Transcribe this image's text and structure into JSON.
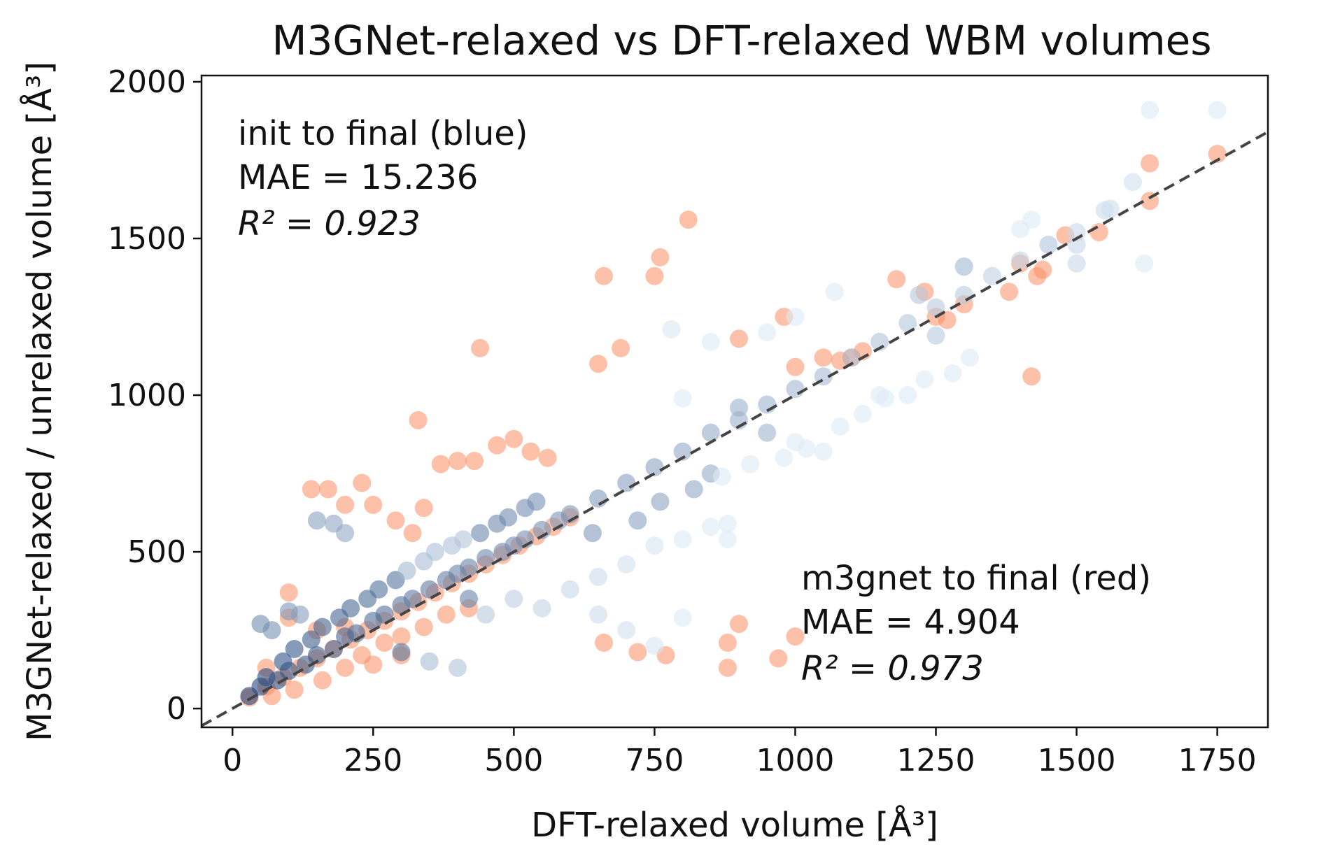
{
  "chart_data": {
    "type": "scatter",
    "title": "M3GNet-relaxed vs DFT-relaxed WBM volumes",
    "xlabel": "DFT-relaxed volume [Å³]",
    "ylabel": "M3GNet-relaxed / unrelaxed volume [Å³]",
    "xlim": [
      -55,
      1840
    ],
    "ylim": [
      -60,
      2020
    ],
    "xticks": [
      0,
      250,
      500,
      750,
      1000,
      1250,
      1500,
      1750
    ],
    "yticks": [
      0,
      500,
      1000,
      1500,
      2000
    ],
    "grid": false,
    "reference_line": {
      "style": "dashed",
      "color": "#444444",
      "x": [
        -55,
        1840
      ],
      "y": [
        -55,
        1840
      ]
    },
    "series": [
      {
        "color_scale": [
          "#08306b",
          "#deebf7"
        ],
        "points": [
          [
            30,
            40
          ],
          [
            50,
            70
          ],
          [
            80,
            90
          ],
          [
            100,
            120
          ],
          [
            130,
            140
          ],
          [
            150,
            170
          ],
          [
            180,
            190
          ],
          [
            200,
            230
          ],
          [
            220,
            240
          ],
          [
            250,
            280
          ],
          [
            270,
            300
          ],
          [
            300,
            330
          ],
          [
            320,
            350
          ],
          [
            350,
            380
          ],
          [
            380,
            410
          ],
          [
            400,
            430
          ],
          [
            420,
            450
          ],
          [
            450,
            480
          ],
          [
            480,
            500
          ],
          [
            500,
            520
          ],
          [
            520,
            540
          ],
          [
            550,
            570
          ],
          [
            580,
            600
          ],
          [
            600,
            620
          ],
          [
            650,
            670
          ],
          [
            700,
            720
          ],
          [
            750,
            770
          ],
          [
            800,
            820
          ],
          [
            850,
            880
          ],
          [
            900,
            920
          ],
          [
            950,
            970
          ],
          [
            1000,
            1020
          ],
          [
            1050,
            1060
          ],
          [
            1100,
            1120
          ],
          [
            1150,
            1170
          ],
          [
            1200,
            1230
          ],
          [
            1250,
            1280
          ],
          [
            1300,
            1320
          ],
          [
            1350,
            1380
          ],
          [
            1400,
            1430
          ],
          [
            1450,
            1480
          ],
          [
            1500,
            1520
          ],
          [
            1550,
            1590
          ],
          [
            1600,
            1680
          ],
          [
            1620,
            1420
          ],
          [
            1500,
            1420
          ],
          [
            1630,
            1910
          ],
          [
            1750,
            1910
          ],
          [
            1420,
            1560
          ],
          [
            1300,
            1410
          ],
          [
            1250,
            1190
          ],
          [
            1200,
            1000
          ],
          [
            1150,
            1000
          ],
          [
            1050,
            820
          ],
          [
            1000,
            850
          ],
          [
            950,
            880
          ],
          [
            900,
            960
          ],
          [
            850,
            750
          ],
          [
            800,
            990
          ],
          [
            780,
            1210
          ],
          [
            850,
            1170
          ],
          [
            950,
            1200
          ],
          [
            1000,
            1250
          ],
          [
            1070,
            1330
          ],
          [
            1220,
            1320
          ],
          [
            1300,
            1410
          ],
          [
            1500,
            1480
          ],
          [
            1450,
            1480
          ],
          [
            1400,
            1530
          ],
          [
            1560,
            1595
          ],
          [
            50,
            270
          ],
          [
            70,
            250
          ],
          [
            100,
            310
          ],
          [
            120,
            300
          ],
          [
            150,
            600
          ],
          [
            180,
            590
          ],
          [
            200,
            560
          ],
          [
            300,
            180
          ],
          [
            350,
            150
          ],
          [
            400,
            130
          ],
          [
            420,
            350
          ],
          [
            450,
            300
          ],
          [
            500,
            350
          ],
          [
            550,
            320
          ],
          [
            600,
            380
          ],
          [
            650,
            420
          ],
          [
            700,
            460
          ],
          [
            750,
            520
          ],
          [
            800,
            540
          ],
          [
            850,
            580
          ],
          [
            650,
            300
          ],
          [
            700,
            250
          ],
          [
            750,
            200
          ],
          [
            800,
            290
          ],
          [
            640,
            560
          ],
          [
            720,
            600
          ],
          [
            760,
            660
          ],
          [
            820,
            700
          ],
          [
            870,
            740
          ],
          [
            920,
            780
          ],
          [
            980,
            800
          ],
          [
            1020,
            830
          ],
          [
            1080,
            900
          ],
          [
            1120,
            940
          ],
          [
            1160,
            990
          ],
          [
            1230,
            1050
          ],
          [
            1280,
            1070
          ],
          [
            1310,
            1120
          ],
          [
            880,
            590
          ],
          [
            880,
            540
          ],
          [
            60,
            100
          ],
          [
            90,
            150
          ],
          [
            110,
            190
          ],
          [
            140,
            220
          ],
          [
            160,
            260
          ],
          [
            190,
            290
          ],
          [
            210,
            320
          ],
          [
            240,
            350
          ],
          [
            260,
            380
          ],
          [
            290,
            410
          ],
          [
            310,
            440
          ],
          [
            340,
            470
          ],
          [
            360,
            500
          ],
          [
            390,
            520
          ],
          [
            410,
            540
          ],
          [
            440,
            560
          ],
          [
            470,
            590
          ],
          [
            490,
            610
          ],
          [
            520,
            640
          ],
          [
            540,
            660
          ]
        ]
      },
      {
        "color": "#fc8d62",
        "points": [
          [
            30,
            35
          ],
          [
            60,
            70
          ],
          [
            90,
            100
          ],
          [
            120,
            130
          ],
          [
            150,
            160
          ],
          [
            180,
            190
          ],
          [
            210,
            220
          ],
          [
            240,
            250
          ],
          [
            270,
            280
          ],
          [
            300,
            310
          ],
          [
            330,
            340
          ],
          [
            360,
            370
          ],
          [
            390,
            400
          ],
          [
            420,
            430
          ],
          [
            450,
            460
          ],
          [
            480,
            490
          ],
          [
            510,
            520
          ],
          [
            540,
            550
          ],
          [
            570,
            580
          ],
          [
            600,
            610
          ],
          [
            140,
            700
          ],
          [
            170,
            700
          ],
          [
            200,
            650
          ],
          [
            230,
            720
          ],
          [
            250,
            650
          ],
          [
            290,
            600
          ],
          [
            320,
            560
          ],
          [
            340,
            640
          ],
          [
            370,
            780
          ],
          [
            400,
            790
          ],
          [
            430,
            790
          ],
          [
            470,
            840
          ],
          [
            500,
            860
          ],
          [
            530,
            820
          ],
          [
            560,
            800
          ],
          [
            330,
            920
          ],
          [
            440,
            1150
          ],
          [
            650,
            1100
          ],
          [
            690,
            1150
          ],
          [
            750,
            1380
          ],
          [
            760,
            1440
          ],
          [
            810,
            1560
          ],
          [
            660,
            1380
          ],
          [
            900,
            1180
          ],
          [
            980,
            1250
          ],
          [
            1000,
            1090
          ],
          [
            1050,
            1120
          ],
          [
            1080,
            1110
          ],
          [
            1100,
            1120
          ],
          [
            1120,
            1140
          ],
          [
            1180,
            1370
          ],
          [
            1230,
            1330
          ],
          [
            1250,
            1250
          ],
          [
            1270,
            1240
          ],
          [
            1300,
            1290
          ],
          [
            1380,
            1330
          ],
          [
            1400,
            1420
          ],
          [
            1430,
            1380
          ],
          [
            1440,
            1400
          ],
          [
            1480,
            1510
          ],
          [
            1540,
            1520
          ],
          [
            1630,
            1740
          ],
          [
            1630,
            1620
          ],
          [
            1750,
            1770
          ],
          [
            1420,
            1060
          ],
          [
            900,
            270
          ],
          [
            880,
            210
          ],
          [
            880,
            130
          ],
          [
            970,
            160
          ],
          [
            1000,
            230
          ],
          [
            660,
            210
          ],
          [
            770,
            170
          ],
          [
            720,
            180
          ],
          [
            300,
            170
          ],
          [
            250,
            140
          ],
          [
            200,
            260
          ],
          [
            150,
            250
          ],
          [
            100,
            370
          ],
          [
            100,
            290
          ],
          [
            60,
            130
          ],
          [
            70,
            40
          ],
          [
            110,
            60
          ],
          [
            160,
            90
          ],
          [
            200,
            130
          ],
          [
            230,
            170
          ],
          [
            270,
            210
          ],
          [
            300,
            230
          ],
          [
            340,
            260
          ],
          [
            380,
            300
          ],
          [
            420,
            320
          ]
        ]
      }
    ],
    "annotations": [
      {
        "lines": [
          "init to final (blue)",
          "MAE = 15.236",
          "R² = 0.923"
        ],
        "position": "top-left"
      },
      {
        "lines": [
          "m3gnet to final (red)",
          "MAE = 4.904",
          "R² = 0.973"
        ],
        "position": "bottom-right"
      }
    ]
  }
}
